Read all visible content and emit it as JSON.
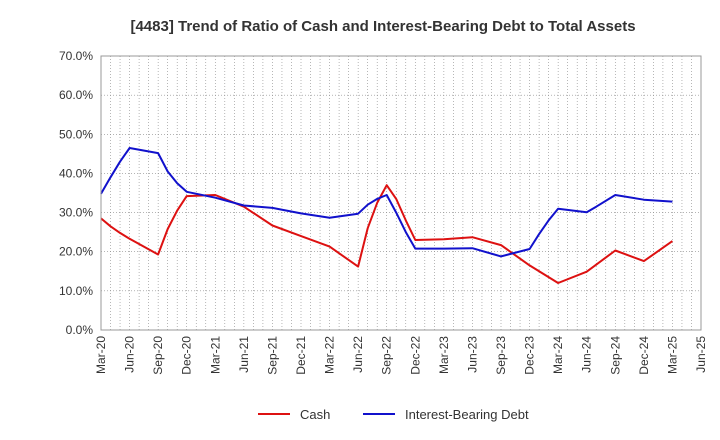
{
  "chart_data": {
    "type": "line",
    "title": "[4483]  Trend of Ratio of Cash and Interest-Bearing Debt to Total Assets",
    "xlabel": "",
    "ylabel": "",
    "ylim": [
      0,
      70
    ],
    "yticks": [
      0,
      10,
      20,
      30,
      40,
      50,
      60,
      70
    ],
    "ytick_labels": [
      "0.0%",
      "10.0%",
      "20.0%",
      "30.0%",
      "40.0%",
      "50.0%",
      "60.0%",
      "70.0%"
    ],
    "xtick_labels": [
      "Mar-20",
      "Jun-20",
      "Sep-20",
      "Dec-20",
      "Mar-21",
      "Jun-21",
      "Sep-21",
      "Dec-21",
      "Mar-22",
      "Jun-22",
      "Sep-22",
      "Dec-22",
      "Mar-23",
      "Jun-23",
      "Sep-23",
      "Dec-23",
      "Mar-24",
      "Jun-24",
      "Sep-24",
      "Dec-24",
      "Mar-25",
      "Jun-25"
    ],
    "x_range": [
      "Mar-20",
      "Jun-25"
    ],
    "grid": true,
    "legend_position": "bottom",
    "series": [
      {
        "name": "Cash",
        "color": "#dd1111",
        "points": [
          [
            "Mar-20",
            28.5
          ],
          [
            "Apr-20",
            26.5
          ],
          [
            "May-20",
            24.8
          ],
          [
            "Jun-20",
            23.3
          ],
          [
            "Sep-20",
            19.3
          ],
          [
            "Oct-20",
            25.8
          ],
          [
            "Nov-20",
            30.5
          ],
          [
            "Dec-20",
            34.2
          ],
          [
            "Mar-21",
            34.5
          ],
          [
            "Jun-21",
            31.5
          ],
          [
            "Sep-21",
            26.7
          ],
          [
            "Dec-21",
            24.0
          ],
          [
            "Mar-22",
            21.3
          ],
          [
            "Jun-22",
            16.2
          ],
          [
            "Jul-22",
            26.0
          ],
          [
            "Aug-22",
            32.5
          ],
          [
            "Sep-22",
            37.0
          ],
          [
            "Oct-22",
            33.5
          ],
          [
            "Nov-22",
            28.0
          ],
          [
            "Dec-22",
            23.0
          ],
          [
            "Mar-23",
            23.2
          ],
          [
            "Jun-23",
            23.7
          ],
          [
            "Sep-23",
            21.7
          ],
          [
            "Dec-23",
            16.5
          ],
          [
            "Mar-24",
            12.0
          ],
          [
            "Jun-24",
            14.9
          ],
          [
            "Sep-24",
            20.3
          ],
          [
            "Dec-24",
            17.6
          ],
          [
            "Mar-25",
            22.7
          ]
        ]
      },
      {
        "name": "Interest-Bearing Debt",
        "color": "#1111cc",
        "points": [
          [
            "Mar-20",
            34.8
          ],
          [
            "Apr-20",
            39.0
          ],
          [
            "May-20",
            43.0
          ],
          [
            "Jun-20",
            46.5
          ],
          [
            "Sep-20",
            45.2
          ],
          [
            "Oct-20",
            40.5
          ],
          [
            "Nov-20",
            37.5
          ],
          [
            "Dec-20",
            35.3
          ],
          [
            "Mar-21",
            33.8
          ],
          [
            "Jun-21",
            31.8
          ],
          [
            "Sep-21",
            31.2
          ],
          [
            "Dec-21",
            29.8
          ],
          [
            "Mar-22",
            28.7
          ],
          [
            "Jun-22",
            29.7
          ],
          [
            "Jul-22",
            32.0
          ],
          [
            "Aug-22",
            33.5
          ],
          [
            "Sep-22",
            34.5
          ],
          [
            "Oct-22",
            30.0
          ],
          [
            "Nov-22",
            25.0
          ],
          [
            "Dec-22",
            20.8
          ],
          [
            "Mar-23",
            20.8
          ],
          [
            "Jun-23",
            20.9
          ],
          [
            "Sep-23",
            18.8
          ],
          [
            "Dec-23",
            20.7
          ],
          [
            "Jan-24",
            24.5
          ],
          [
            "Feb-24",
            28.0
          ],
          [
            "Mar-24",
            31.0
          ],
          [
            "Jun-24",
            30.1
          ],
          [
            "Jul-24",
            31.5
          ],
          [
            "Sep-24",
            34.5
          ],
          [
            "Dec-24",
            33.3
          ],
          [
            "Mar-25",
            32.8
          ]
        ]
      }
    ]
  }
}
